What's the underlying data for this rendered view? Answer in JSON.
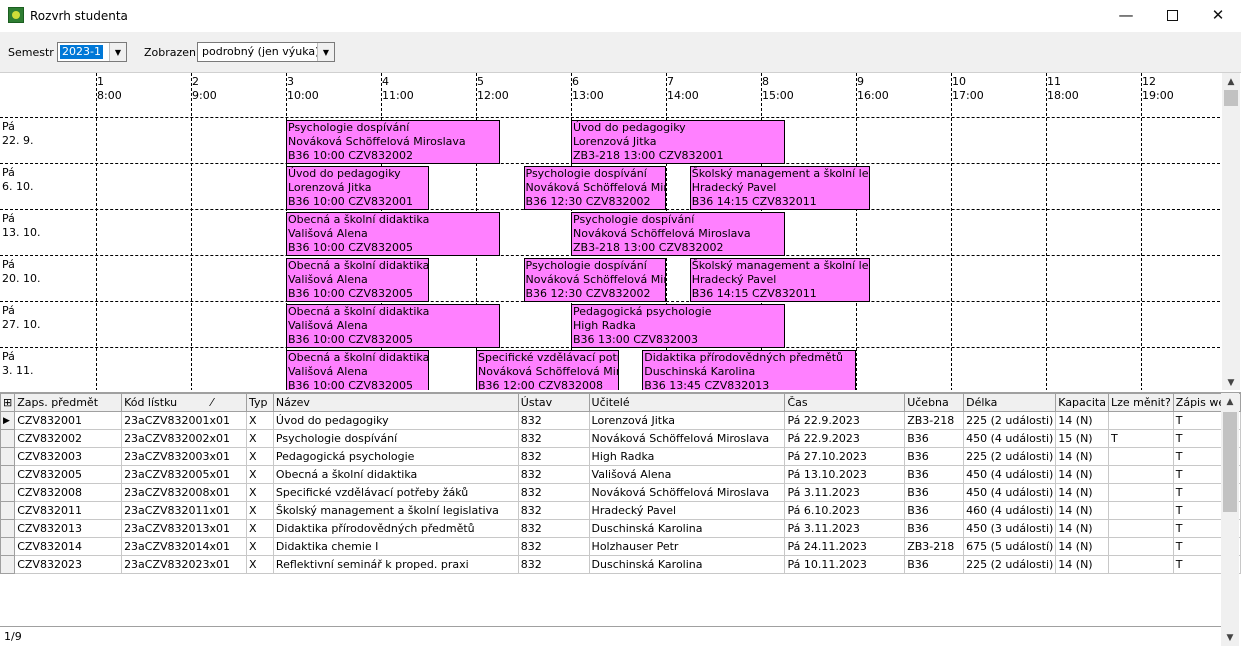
{
  "window": {
    "title": "Rozvrh studenta",
    "minimize": "—",
    "close": "✕"
  },
  "toolbar": {
    "semestr_label": "Semestr",
    "semestr_value": "2023-1",
    "zobrazeni_label": "Zobrazení",
    "zobrazeni_value": "podrobný (jen výuka)"
  },
  "schedule": {
    "hours": [
      {
        "num": "1",
        "time": "8:00"
      },
      {
        "num": "2",
        "time": "9:00"
      },
      {
        "num": "3",
        "time": "10:00"
      },
      {
        "num": "4",
        "time": "11:00"
      },
      {
        "num": "5",
        "time": "12:00"
      },
      {
        "num": "6",
        "time": "13:00"
      },
      {
        "num": "7",
        "time": "14:00"
      },
      {
        "num": "8",
        "time": "15:00"
      },
      {
        "num": "9",
        "time": "16:00"
      },
      {
        "num": "10",
        "time": "17:00"
      },
      {
        "num": "11",
        "time": "18:00"
      },
      {
        "num": "12",
        "time": "19:00"
      }
    ],
    "days": [
      {
        "day": "Pá",
        "date": "22. 9.",
        "events": [
          {
            "l1": "Psychologie dospívání",
            "l2": "Nováková Schöffelová Miroslava",
            "l3": "B36 10:00 CZV832002",
            "start": 10.0,
            "end": 12.25
          },
          {
            "l1": "Úvod do pedagogiky",
            "l2": "Lorenzová Jitka",
            "l3": "ZB3-218 13:00 CZV832001",
            "start": 13.0,
            "end": 15.25
          }
        ]
      },
      {
        "day": "Pá",
        "date": "6. 10.",
        "events": [
          {
            "l1": "Úvod do pedagogiky",
            "l2": "Lorenzová Jitka",
            "l3": "B36 10:00 CZV832001",
            "start": 10.0,
            "end": 11.5
          },
          {
            "l1": "Psychologie dospívání",
            "l2": "Nováková Schöffelová Miroslava",
            "l3": "B36 12:30 CZV832002",
            "start": 12.5,
            "end": 14.0
          },
          {
            "l1": "Školský management a školní legislativa",
            "l2": "Hradecký Pavel",
            "l3": "B36 14:15 CZV832011",
            "start": 14.25,
            "end": 16.15
          }
        ]
      },
      {
        "day": "Pá",
        "date": "13. 10.",
        "events": [
          {
            "l1": "Obecná a školní didaktika",
            "l2": "Vališová Alena",
            "l3": "B36 10:00 CZV832005",
            "start": 10.0,
            "end": 12.25
          },
          {
            "l1": "Psychologie dospívání",
            "l2": "Nováková Schöffelová Miroslava",
            "l3": "ZB3-218 13:00 CZV832002",
            "start": 13.0,
            "end": 15.25
          }
        ]
      },
      {
        "day": "Pá",
        "date": "20. 10.",
        "events": [
          {
            "l1": "Obecná a školní didaktika",
            "l2": "Vališová Alena",
            "l3": "B36 10:00 CZV832005",
            "start": 10.0,
            "end": 11.5
          },
          {
            "l1": "Psychologie dospívání",
            "l2": "Nováková Schöffelová Miroslava",
            "l3": "B36 12:30 CZV832002",
            "start": 12.5,
            "end": 14.0
          },
          {
            "l1": "Školský management a školní legislativa",
            "l2": "Hradecký Pavel",
            "l3": "B36 14:15 CZV832011",
            "start": 14.25,
            "end": 16.15
          }
        ]
      },
      {
        "day": "Pá",
        "date": "27. 10.",
        "events": [
          {
            "l1": "Obecná a školní didaktika",
            "l2": "Vališová Alena",
            "l3": "B36 10:00 CZV832005",
            "start": 10.0,
            "end": 12.25
          },
          {
            "l1": "Pedagogická psychologie",
            "l2": "High Radka",
            "l3": "B36 13:00 CZV832003",
            "start": 13.0,
            "end": 15.25
          }
        ]
      },
      {
        "day": "Pá",
        "date": "3. 11.",
        "events": [
          {
            "l1": "Obecná a školní didaktika",
            "l2": "Vališová Alena",
            "l3": "B36 10:00 CZV832005",
            "start": 10.0,
            "end": 11.5
          },
          {
            "l1": "Specifické vzdělávací potřeby žáků",
            "l2": "Nováková Schöffelová Miroslava",
            "l3": "B36 12:00 CZV832008",
            "start": 12.0,
            "end": 13.5
          },
          {
            "l1": "Didaktika přírodovědných předmětů",
            "l2": "Duschinská Karolina",
            "l3": "B36 13:45 CZV832013",
            "start": 13.75,
            "end": 16.0
          }
        ]
      }
    ]
  },
  "grid": {
    "columns": [
      "Zaps. předmět",
      "Kód lístku",
      "Typ",
      "Název",
      "Ústav",
      "Učitelé",
      "Čas",
      "Učebna",
      "Délka",
      "Kapacita",
      "Lze měnit?",
      "Zápis web?"
    ],
    "sort_indicator": "⁄",
    "rows": [
      [
        "CZV832001",
        "23aCZV832001x01",
        "X",
        "Úvod do pedagogiky",
        "832",
        "Lorenzová Jitka",
        "Pá 22.9.2023",
        "ZB3-218",
        "225 (2 události)",
        "14 (N)",
        "",
        "T"
      ],
      [
        "CZV832002",
        "23aCZV832002x01",
        "X",
        "Psychologie dospívání",
        "832",
        "Nováková Schöffelová Miroslava",
        "Pá 22.9.2023",
        "B36",
        "450 (4 události)",
        "15 (N)",
        "T",
        "T"
      ],
      [
        "CZV832003",
        "23aCZV832003x01",
        "X",
        "Pedagogická psychologie",
        "832",
        "High Radka",
        "Pá 27.10.2023",
        "B36",
        "225 (2 události)",
        "14 (N)",
        "",
        "T"
      ],
      [
        "CZV832005",
        "23aCZV832005x01",
        "X",
        "Obecná a školní didaktika",
        "832",
        "Vališová Alena",
        "Pá 13.10.2023",
        "B36",
        "450 (4 události)",
        "14 (N)",
        "",
        "T"
      ],
      [
        "CZV832008",
        "23aCZV832008x01",
        "X",
        "Specifické vzdělávací potřeby žáků",
        "832",
        "Nováková Schöffelová Miroslava",
        "Pá 3.11.2023",
        "B36",
        "450 (4 události)",
        "14 (N)",
        "",
        "T"
      ],
      [
        "CZV832011",
        "23aCZV832011x01",
        "X",
        "Školský management a školní legislativa",
        "832",
        "Hradecký Pavel",
        "Pá 6.10.2023",
        "B36",
        "460 (4 události)",
        "14 (N)",
        "",
        "T"
      ],
      [
        "CZV832013",
        "23aCZV832013x01",
        "X",
        "Didaktika přírodovědných předmětů",
        "832",
        "Duschinská Karolina",
        "Pá 3.11.2023",
        "B36",
        "450 (3 události)",
        "14 (N)",
        "",
        "T"
      ],
      [
        "CZV832014",
        "23aCZV832014x01",
        "X",
        "Didaktika chemie I",
        "832",
        "Holzhauser Petr",
        "Pá 24.11.2023",
        "ZB3-218",
        "675 (5 událostí)",
        "14 (N)",
        "",
        "T"
      ],
      [
        "CZV832023",
        "23aCZV832023x01",
        "X",
        "Reflektivní seminář k proped. praxi",
        "832",
        "Duschinská Karolina",
        "Pá 10.11.2023",
        "B36",
        "225 (2 události)",
        "14 (N)",
        "",
        "T"
      ]
    ],
    "status": "1/9"
  }
}
